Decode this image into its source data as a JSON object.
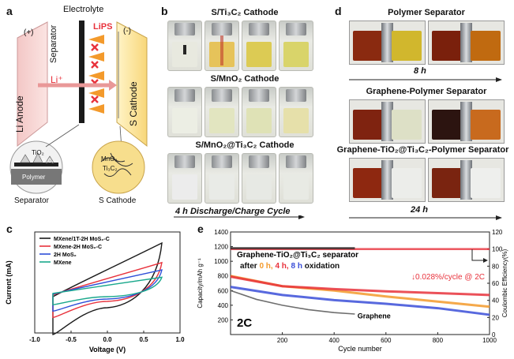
{
  "panel_a": {
    "label": "a",
    "electrolyte": "Electrolyte",
    "plus": "(+)",
    "minus": "(-)",
    "lips": "LiPS",
    "li_plus": "Li⁺",
    "separator": "Separator",
    "li_anode": "Li Anode",
    "s_cathode": "S Cathode",
    "tio2": "TiO₂",
    "ti3c2": "Ti₃C₂",
    "polymer": "Polymer",
    "mno2": "MnO₂",
    "ti3c2_b": "Ti₃C₂",
    "bottom_separator": "Separator",
    "bottom_cathode": "S Cathode"
  },
  "panel_b": {
    "label": "b",
    "titles": [
      "S/Ti₃C₂ Cathode",
      "S/MnO₂ Cathode",
      "S/MnO₂@Ti₃C₂ Cathode"
    ],
    "caption": "4 h Discharge/Charge Cycle"
  },
  "panel_d": {
    "label": "d",
    "titles": [
      "Polymer Separator",
      "Graphene-Polymer Separator",
      "Graphene-TiO₂@Ti₃C₂-Polymer Separator"
    ],
    "time_1": "8 h",
    "time_2": "24 h"
  },
  "chart_data": [
    {
      "panel": "c",
      "type": "line",
      "xlabel": "Voltage (V)",
      "ylabel": "Current (mA)",
      "xlim": [
        -1.0,
        1.0
      ],
      "xticks": [
        "-1.0",
        "-0.5",
        "0.0",
        "0.5",
        "1.0"
      ],
      "legend": "top-left",
      "series": [
        {
          "name": "MXene/1T-2H MoS₂-C",
          "color": "#1a1a1a",
          "amp": 1.0
        },
        {
          "name": "MXene-2H MoS₂-C",
          "color": "#e8323c",
          "amp": 0.6
        },
        {
          "name": "2H MoS₂",
          "color": "#2f4fd8",
          "amp": 0.45
        },
        {
          "name": "MXene",
          "color": "#1aa88c",
          "amp": 0.3
        }
      ]
    },
    {
      "panel": "e",
      "type": "scatter",
      "xlabel": "Cycle number",
      "ylabel": "Capacity/mAh g⁻¹",
      "y2label": "Coulombic Efficiency(%)",
      "xlim": [
        0,
        1000
      ],
      "ylim": [
        0,
        1400
      ],
      "y2lim": [
        0,
        120
      ],
      "xticks": [
        200,
        400,
        600,
        800,
        1000
      ],
      "yticks": [
        200,
        400,
        600,
        800,
        1000,
        1200,
        1400
      ],
      "y2ticks": [
        0,
        20,
        40,
        60,
        80,
        100,
        120
      ],
      "annotation_sep": "Graphene-TiO₂@Ti₃C₂ separator",
      "annotation_after": "after",
      "annotation_h0": "0 h,",
      "annotation_h4": "4 h,",
      "annotation_h8": "8 h",
      "annotation_ox": "oxidation",
      "decay": "↓0.028%/cycle @ 2C",
      "rate": "2C",
      "graphene": "Graphene",
      "series": [
        {
          "name": "0 h",
          "color": "#f39a2c",
          "x": [
            0,
            200,
            400,
            600,
            800,
            1000
          ],
          "y": [
            800,
            660,
            600,
            520,
            450,
            380
          ]
        },
        {
          "name": "4 h",
          "color": "#e8323c",
          "x": [
            0,
            200,
            400,
            600,
            800,
            1000
          ],
          "y": [
            790,
            660,
            620,
            590,
            565,
            540
          ]
        },
        {
          "name": "8 h",
          "color": "#3b4fd8",
          "x": [
            0,
            200,
            400,
            600,
            800,
            1000
          ],
          "y": [
            650,
            540,
            470,
            420,
            360,
            270
          ]
        },
        {
          "name": "Graphene",
          "color": "#555555",
          "x": [
            0,
            100,
            200,
            300,
            400,
            480
          ],
          "y": [
            600,
            480,
            400,
            340,
            300,
            280
          ]
        },
        {
          "name": "CE",
          "color": "#e8323c",
          "x": [
            0,
            1000
          ],
          "y2": [
            100,
            100
          ]
        },
        {
          "name": "CE-graphene",
          "color": "#222222",
          "x": [
            0,
            480
          ],
          "y2": [
            101,
            101
          ]
        }
      ]
    }
  ]
}
